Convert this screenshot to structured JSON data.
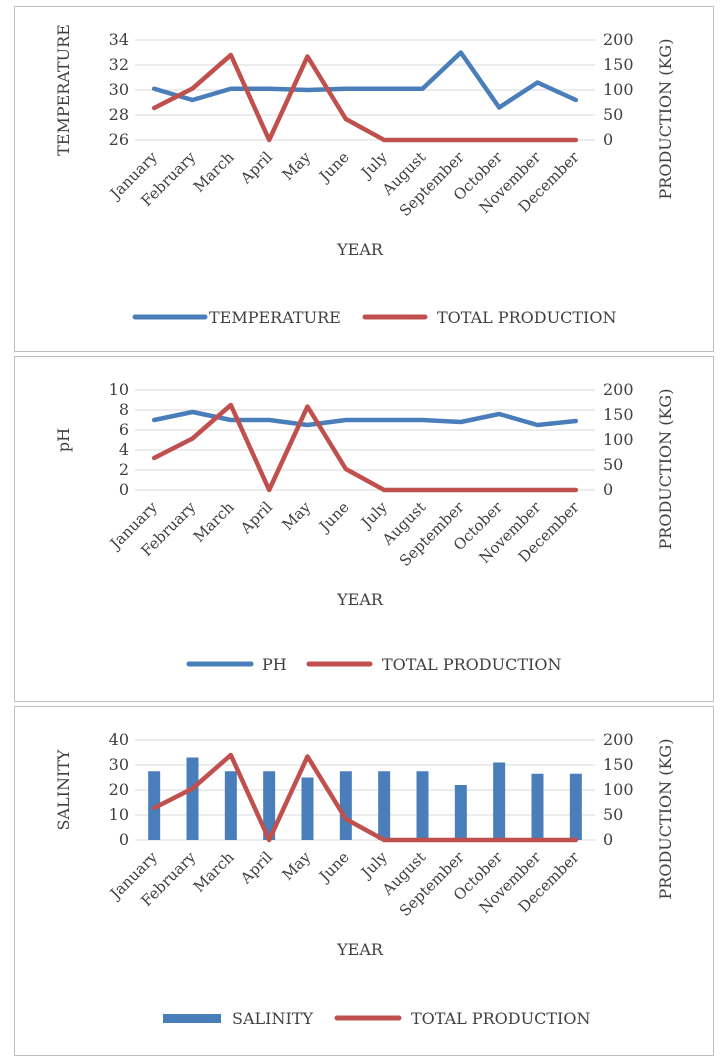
{
  "chart_data": [
    {
      "type": "line",
      "categories": [
        "January",
        "February",
        "March",
        "April",
        "May",
        "June",
        "July",
        "August",
        "September",
        "October",
        "November",
        "December"
      ],
      "series": [
        {
          "name": "TEMPERATURE",
          "axis": "left",
          "type": "line",
          "color": "#4a7ebb",
          "values": [
            30.1,
            29.2,
            30.1,
            30.1,
            30.0,
            30.1,
            30.1,
            30.1,
            33.0,
            28.6,
            30.6,
            29.2
          ]
        },
        {
          "name": "TOTAL PRODUCTION",
          "axis": "right",
          "type": "line",
          "color": "#c0504d",
          "values": [
            64,
            103,
            170,
            0,
            167,
            42,
            0,
            0,
            0,
            0,
            0,
            0
          ]
        }
      ],
      "ylabel": "TEMPERATURE",
      "y2label": "PRODUCTION (KG)",
      "xlabel": "YEAR",
      "ylim": [
        26,
        34
      ],
      "yticks": [
        26,
        28,
        30,
        32,
        34
      ],
      "y2lim": [
        0,
        200
      ],
      "y2ticks": [
        0,
        50,
        100,
        150,
        200
      ],
      "grid": true,
      "legend": "bottom"
    },
    {
      "type": "line",
      "categories": [
        "January",
        "February",
        "March",
        "April",
        "May",
        "June",
        "July",
        "August",
        "September",
        "October",
        "November",
        "December"
      ],
      "series": [
        {
          "name": "PH",
          "axis": "left",
          "type": "line",
          "color": "#4a7ebb",
          "values": [
            7.0,
            7.8,
            7.0,
            7.0,
            6.5,
            7.0,
            7.0,
            7.0,
            6.8,
            7.6,
            6.5,
            6.9
          ]
        },
        {
          "name": "TOTAL PRODUCTION",
          "axis": "right",
          "type": "line",
          "color": "#c0504d",
          "values": [
            64,
            103,
            170,
            0,
            167,
            42,
            0,
            0,
            0,
            0,
            0,
            0
          ]
        }
      ],
      "ylabel": "pH",
      "y2label": "PRODUCTION (KG)",
      "xlabel": "YEAR",
      "ylim": [
        0,
        10
      ],
      "yticks": [
        0,
        2,
        4,
        6,
        8,
        10
      ],
      "y2lim": [
        0,
        200
      ],
      "y2ticks": [
        0,
        50,
        100,
        150,
        200
      ],
      "grid": true,
      "legend": "bottom"
    },
    {
      "type": "bar",
      "categories": [
        "January",
        "February",
        "March",
        "April",
        "May",
        "June",
        "July",
        "August",
        "September",
        "October",
        "November",
        "December"
      ],
      "series": [
        {
          "name": "SALINITY",
          "axis": "left",
          "type": "bar",
          "color": "#4a7ebb",
          "values": [
            27.5,
            33,
            27.5,
            27.5,
            25,
            27.5,
            27.5,
            27.5,
            22,
            31,
            26.5,
            26.5
          ]
        },
        {
          "name": "TOTAL PRODUCTION",
          "axis": "right",
          "type": "line",
          "color": "#c0504d",
          "values": [
            64,
            103,
            170,
            0,
            167,
            42,
            0,
            0,
            0,
            0,
            0,
            0
          ]
        }
      ],
      "ylabel": "SALINITY",
      "y2label": "PRODUCTION (KG)",
      "xlabel": "YEAR",
      "ylim": [
        0,
        40
      ],
      "yticks": [
        0,
        10,
        20,
        30,
        40
      ],
      "y2lim": [
        0,
        200
      ],
      "y2ticks": [
        0,
        50,
        100,
        150,
        200
      ],
      "grid": true,
      "legend": "bottom"
    }
  ]
}
